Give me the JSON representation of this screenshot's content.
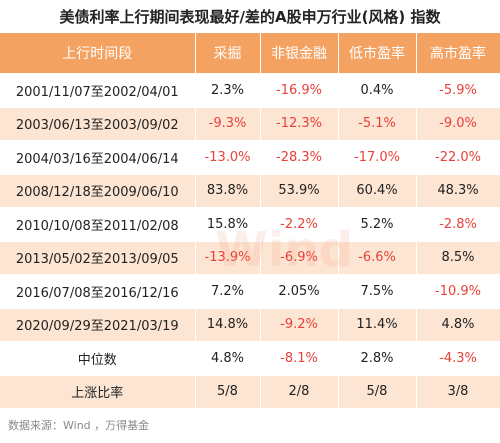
{
  "title": "美债利率上行期间表现最好/差的A股申万行业(风格) 指数",
  "table": {
    "header": [
      "上行时间段",
      "采掘",
      "非银金融",
      "低市盈率",
      "高市盈率"
    ],
    "rows": [
      [
        "2001/11/07至2002/04/01",
        "2.3%",
        "-16.9%",
        "0.4%",
        "-5.9%"
      ],
      [
        "2003/06/13至2003/09/02",
        "-9.3%",
        "-12.3%",
        "-5.1%",
        "-9.0%"
      ],
      [
        "2004/03/16至2004/06/14",
        "-13.0%",
        "-28.3%",
        "-17.0%",
        "-22.0%"
      ],
      [
        "2008/12/18至2009/06/10",
        "83.8%",
        "53.9%",
        "60.4%",
        "48.3%"
      ],
      [
        "2010/10/08至2011/02/08",
        "15.8%",
        "-2.2%",
        "5.2%",
        "-2.8%"
      ],
      [
        "2013/05/02至2013/09/05",
        "-13.9%",
        "-6.9%",
        "-6.6%",
        "8.5%"
      ],
      [
        "2016/07/08至2016/12/16",
        "7.2%",
        "2.05%",
        "7.5%",
        "-10.9%"
      ],
      [
        "2020/09/29至2021/03/19",
        "14.8%",
        "-9.2%",
        "11.4%",
        "4.8%"
      ],
      [
        "中位数",
        "4.8%",
        "-8.1%",
        "2.8%",
        "-4.3%"
      ],
      [
        "上涨比率",
        "5/8",
        "2/8",
        "5/8",
        "3/8"
      ]
    ]
  },
  "watermark": "Wind",
  "source": "数据来源：Wind ，万得基金"
}
